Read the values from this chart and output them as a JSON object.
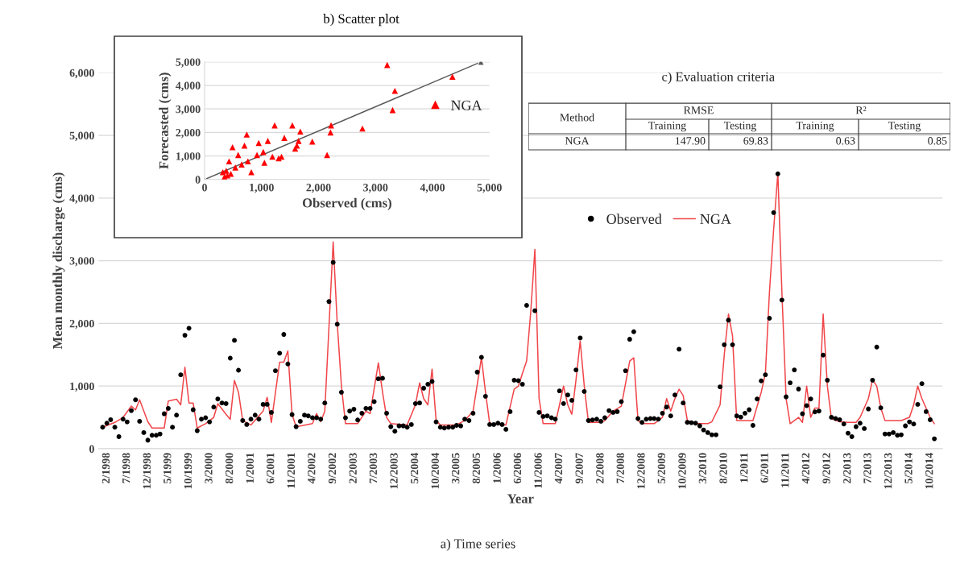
{
  "chart_data": [
    {
      "type": "line",
      "xlabel": "Year",
      "ylabel": "Mean monthly discharge (cms)",
      "annotations": [
        "a) Time series"
      ],
      "xlim": [
        "1997-12",
        "2015-01"
      ],
      "ylim": [
        0,
        6000
      ],
      "yticks": [
        0,
        {
          "value": 1000,
          "label": "1,000"
        },
        {
          "value": 2000,
          "label": "2,000"
        },
        {
          "value": 3000,
          "label": "3,000"
        },
        {
          "value": 4000,
          "label": "4,000"
        },
        {
          "value": 5000,
          "label": "5,000"
        },
        {
          "value": 6000,
          "label": "6,000"
        }
      ],
      "xticks": [
        {
          "value": "1998-02",
          "label": "2/1998"
        },
        {
          "value": "1998-07",
          "label": "7/1998"
        },
        {
          "value": "1998-12",
          "label": "12/1998"
        },
        {
          "value": "1999-05",
          "label": "5/1999"
        },
        {
          "value": "1999-10",
          "label": "10/1999"
        },
        {
          "value": "2000-03",
          "label": "3/2000"
        },
        {
          "value": "2000-08",
          "label": "8/2000"
        },
        {
          "value": "2001-01",
          "label": "1/2001"
        },
        {
          "value": "2001-06",
          "label": "6/2001"
        },
        {
          "value": "2001-11",
          "label": "11/2001"
        },
        {
          "value": "2002-04",
          "label": "4/2002"
        },
        {
          "value": "2002-09",
          "label": "9/2002"
        },
        {
          "value": "2003-02",
          "label": "2/2003"
        },
        {
          "value": "2003-07",
          "label": "7/2003"
        },
        {
          "value": "2003-12",
          "label": "12/2003"
        },
        {
          "value": "2004-05",
          "label": "5/2004"
        },
        {
          "value": "2004-10",
          "label": "10/2004"
        },
        {
          "value": "2005-03",
          "label": "3/2005"
        },
        {
          "value": "2005-08",
          "label": "8/2005"
        },
        {
          "value": "2006-01",
          "label": "1/2006"
        },
        {
          "value": "2006-06",
          "label": "6/2006"
        },
        {
          "value": "2006-11",
          "label": "11/2006"
        },
        {
          "value": "2007-04",
          "label": "4/2007"
        },
        {
          "value": "2007-09",
          "label": "9/2007"
        },
        {
          "value": "2008-02",
          "label": "2/2008"
        },
        {
          "value": "2008-07",
          "label": "7/2008"
        },
        {
          "value": "2008-12",
          "label": "12/2008"
        },
        {
          "value": "2009-05",
          "label": "5/2009"
        },
        {
          "value": "2009-10",
          "label": "10/2009"
        },
        {
          "value": "2010-03",
          "label": "3/2010"
        },
        {
          "value": "2010-08",
          "label": "8/2010"
        },
        {
          "value": "2011-01",
          "label": "1/2011"
        },
        {
          "value": "2011-06",
          "label": "6/2011"
        },
        {
          "value": "2011-11",
          "label": "11/2011"
        },
        {
          "value": "2012-04",
          "label": "4/2012"
        },
        {
          "value": "2012-09",
          "label": "9/2012"
        },
        {
          "value": "2013-02",
          "label": "2/2013"
        },
        {
          "value": "2013-07",
          "label": "7/2013"
        },
        {
          "value": "2013-12",
          "label": "12/2013"
        },
        {
          "value": "2014-05",
          "label": "5/2014"
        },
        {
          "value": "2014-10",
          "label": "10/2014"
        }
      ],
      "grid": "y",
      "legend": "top",
      "series": [
        {
          "name": "Observed",
          "type": "scatter",
          "marker": "circle",
          "color": "#000000",
          "x": [
            "1998-01",
            "1998-02",
            "1998-03",
            "1998-04",
            "1998-05",
            "1998-06",
            "1998-07",
            "1998-08",
            "1998-09",
            "1998-10",
            "1998-11",
            "1998-12",
            "1999-01",
            "1999-02",
            "1999-03",
            "1999-04",
            "1999-05",
            "1999-06",
            "1999-07",
            "1999-08",
            "1999-09",
            "1999-10",
            "1999-11",
            "1999-12",
            "2000-01",
            "2000-02",
            "2000-03",
            "2000-04",
            "2000-05",
            "2000-06",
            "2000-07",
            "2000-08",
            "2000-09",
            "2000-10",
            "2000-11",
            "2000-12",
            "2001-01",
            "2001-02",
            "2001-03",
            "2001-04",
            "2001-05",
            "2001-06",
            "2001-07",
            "2001-08",
            "2001-09",
            "2001-10",
            "2001-11",
            "2001-12",
            "2002-01",
            "2002-02",
            "2002-03",
            "2002-04",
            "2002-05",
            "2002-06",
            "2002-07",
            "2002-08",
            "2002-09",
            "2002-10",
            "2002-11",
            "2002-12",
            "2003-01",
            "2003-02",
            "2003-03",
            "2003-04",
            "2003-05",
            "2003-06",
            "2003-07",
            "2003-08",
            "2003-09",
            "2003-10",
            "2003-11",
            "2003-12",
            "2004-01",
            "2004-02",
            "2004-03",
            "2004-04",
            "2004-05",
            "2004-06",
            "2004-07",
            "2004-08",
            "2004-09",
            "2004-10",
            "2004-11",
            "2004-12",
            "2005-01",
            "2005-02",
            "2005-03",
            "2005-04",
            "2005-05",
            "2005-06",
            "2005-07",
            "2005-08",
            "2005-09",
            "2005-10",
            "2005-11",
            "2005-12",
            "2006-01",
            "2006-02",
            "2006-03",
            "2006-04",
            "2006-05",
            "2006-06",
            "2006-07",
            "2006-08",
            "2006-10",
            "2006-11",
            "2006-12",
            "2007-01",
            "2007-02",
            "2007-03",
            "2007-04",
            "2007-05",
            "2007-06",
            "2007-07",
            "2007-08",
            "2007-09",
            "2007-10",
            "2007-11",
            "2007-12",
            "2008-01",
            "2008-02",
            "2008-03",
            "2008-04",
            "2008-05",
            "2008-06",
            "2008-07",
            "2008-08",
            "2008-09",
            "2008-10",
            "2008-11",
            "2008-12",
            "2009-01",
            "2009-02",
            "2009-03",
            "2009-04",
            "2009-05",
            "2009-06",
            "2009-07",
            "2009-08",
            "2009-09",
            "2009-10",
            "2009-11",
            "2009-12",
            "2010-01",
            "2010-02",
            "2010-03",
            "2010-04",
            "2010-05",
            "2010-06",
            "2010-07",
            "2010-08",
            "2010-09",
            "2010-10",
            "2010-11",
            "2010-12",
            "2011-01",
            "2011-02",
            "2011-03",
            "2011-04",
            "2011-05",
            "2011-06",
            "2011-07",
            "2011-08",
            "2011-09",
            "2011-10",
            "2011-11",
            "2011-12",
            "2012-01",
            "2012-02",
            "2012-03",
            "2012-04",
            "2012-05",
            "2012-06",
            "2012-07",
            "2012-08",
            "2012-09",
            "2012-10",
            "2012-11",
            "2012-12",
            "2013-01",
            "2013-02",
            "2013-03",
            "2013-04",
            "2013-05",
            "2013-06",
            "2013-07",
            "2013-08",
            "2013-09",
            "2013-10",
            "2013-11",
            "2013-12",
            "2014-01",
            "2014-02",
            "2014-03",
            "2014-04",
            "2014-05",
            "2014-06",
            "2014-07",
            "2014-08",
            "2014-09",
            "2014-10",
            "2014-11"
          ],
          "values": [
            343,
            408,
            463,
            343,
            193,
            472,
            429,
            609,
            781,
            438,
            258,
            137,
            215,
            215,
            236,
            558,
            644,
            343,
            536,
            1180,
            1811,
            1923,
            622,
            288,
            472,
            494,
            429,
            665,
            794,
            730,
            721,
            1446,
            1730,
            1253,
            450,
            386,
            472,
            536,
            472,
            708,
            708,
            579,
            1245,
            1524,
            1824,
            1352,
            545,
            352,
            438,
            536,
            524,
            494,
            494,
            472,
            730,
            2348,
            2974,
            1987,
            901,
            494,
            601,
            631,
            459,
            567,
            644,
            644,
            751,
            1116,
            1124,
            567,
            352,
            279,
            365,
            365,
            343,
            386,
            721,
            730,
            966,
            1030,
            1073,
            429,
            343,
            330,
            343,
            343,
            373,
            365,
            472,
            450,
            567,
            1223,
            1459,
            837,
            386,
            386,
            408,
            386,
            309,
            592,
            1094,
            1086,
            1030,
            2288,
            2202,
            579,
            515,
            524,
            494,
            472,
            923,
            721,
            858,
            773,
            1258,
            1768,
            914,
            450,
            459,
            472,
            438,
            494,
            609,
            579,
            592,
            751,
            1245,
            1747,
            1867,
            481,
            421,
            472,
            481,
            481,
            472,
            567,
            665,
            524,
            858,
            1588,
            730,
            421,
            416,
            408,
            365,
            300,
            258,
            223,
            223,
            987,
            1660,
            2052,
            1660,
            524,
            506,
            567,
            622,
            373,
            794,
            1082,
            1180,
            2082,
            3768,
            4386,
            2373,
            828,
            1052,
            1258,
            953,
            558,
            687,
            794,
            588,
            601,
            1494,
            1094,
            502,
            481,
            463,
            395,
            249,
            193,
            352,
            408,
            322,
            635,
            1094,
            1622,
            652,
            236,
            236,
            258,
            215,
            223,
            365,
            429,
            395,
            708,
            1039,
            592,
            463,
            159
          ]
        },
        {
          "name": "NGA",
          "type": "line",
          "color": "#f0464a",
          "x": [
            "1998-01",
            "1998-04",
            "1998-06",
            "1998-08",
            "1998-09",
            "1998-10",
            "1998-12",
            "1999-01",
            "1999-04",
            "1999-05",
            "1999-07",
            "1999-08",
            "1999-09",
            "1999-10",
            "1999-11",
            "1999-12",
            "2000-02",
            "2000-04",
            "2000-05",
            "2000-07",
            "2000-08",
            "2000-09",
            "2000-10",
            "2000-11",
            "2001-01",
            "2001-04",
            "2001-05",
            "2001-06",
            "2001-08",
            "2001-09",
            "2001-10",
            "2001-11",
            "2001-12",
            "2002-04",
            "2002-05",
            "2002-06",
            "2002-07",
            "2002-09",
            "2002-10",
            "2002-11",
            "2002-12",
            "2003-03",
            "2003-05",
            "2003-06",
            "2003-08",
            "2003-09",
            "2003-10",
            "2003-11",
            "2004-03",
            "2004-05",
            "2004-06",
            "2004-07",
            "2004-08",
            "2004-09",
            "2004-10",
            "2004-11",
            "2005-03",
            "2005-05",
            "2005-07",
            "2005-09",
            "2005-10",
            "2005-11",
            "2006-03",
            "2006-05",
            "2006-06",
            "2006-07",
            "2006-08",
            "2006-09",
            "2006-10",
            "2006-11",
            "2006-12",
            "2007-03",
            "2007-04",
            "2007-05",
            "2007-06",
            "2007-07",
            "2007-08",
            "2007-09",
            "2007-10",
            "2007-11",
            "2008-02",
            "2008-03",
            "2008-05",
            "2008-07",
            "2008-09",
            "2008-10",
            "2008-11",
            "2008-12",
            "2009-03",
            "2009-05",
            "2009-06",
            "2009-07",
            "2009-08",
            "2009-09",
            "2009-10",
            "2009-11",
            "2010-01",
            "2010-04",
            "2010-05",
            "2010-07",
            "2010-08",
            "2010-09",
            "2010-10",
            "2010-11",
            "2011-01",
            "2011-03",
            "2011-05",
            "2011-06",
            "2011-07",
            "2011-08",
            "2011-09",
            "2011-10",
            "2011-11",
            "2011-12",
            "2012-02",
            "2012-03",
            "2012-04",
            "2012-05",
            "2012-06",
            "2012-07",
            "2012-08",
            "2012-09",
            "2012-10",
            "2012-12",
            "2013-02",
            "2013-04",
            "2013-05",
            "2013-07",
            "2013-08",
            "2013-09",
            "2013-10",
            "2013-11",
            "2014-03",
            "2014-05",
            "2014-06",
            "2014-07",
            "2014-08",
            "2014-10",
            "2014-11"
          ],
          "values": [
            343,
            420,
            500,
            680,
            620,
            780,
            430,
            330,
            330,
            760,
            790,
            700,
            1300,
            730,
            730,
            330,
            400,
            500,
            720,
            550,
            470,
            1090,
            900,
            450,
            380,
            600,
            820,
            420,
            1380,
            1380,
            1560,
            550,
            350,
            400,
            560,
            430,
            600,
            3300,
            2000,
            1000,
            400,
            400,
            600,
            560,
            1370,
            900,
            500,
            400,
            380,
            700,
            1050,
            800,
            700,
            1270,
            450,
            380,
            380,
            450,
            600,
            1450,
            900,
            400,
            380,
            950,
            1000,
            1200,
            1400,
            2200,
            3180,
            800,
            400,
            400,
            700,
            1000,
            700,
            550,
            1100,
            1720,
            1000,
            420,
            420,
            450,
            600,
            680,
            1400,
            1450,
            450,
            400,
            400,
            500,
            800,
            600,
            800,
            950,
            850,
            450,
            400,
            400,
            430,
            700,
            1500,
            2150,
            1800,
            450,
            450,
            450,
            900,
            1200,
            2500,
            3500,
            4400,
            2500,
            800,
            400,
            500,
            420,
            1000,
            500,
            650,
            650,
            2150,
            1000,
            480,
            430,
            420,
            420,
            500,
            800,
            1100,
            1000,
            650,
            450,
            450,
            500,
            700,
            1000,
            800,
            500,
            400
          ]
        }
      ]
    },
    {
      "type": "scatter",
      "title": "b) Scatter plot",
      "xlabel": "Observed (cms)",
      "ylabel": "Forecasted (cms)",
      "xlim": [
        0,
        5000
      ],
      "ylim": [
        0,
        5000
      ],
      "xticks": [
        0,
        {
          "value": 1000,
          "label": "1,000"
        },
        {
          "value": 2000,
          "label": "2,000"
        },
        {
          "value": 3000,
          "label": "3,000"
        },
        {
          "value": 4000,
          "label": "4,000"
        },
        {
          "value": 5000,
          "label": "5,000"
        }
      ],
      "yticks": [
        0,
        {
          "value": 1000,
          "label": "1,000"
        },
        {
          "value": 2000,
          "label": "2,000"
        },
        {
          "value": 3000,
          "label": "3,000"
        },
        {
          "value": 4000,
          "label": "4,000"
        },
        {
          "value": 5000,
          "label": "5,000"
        }
      ],
      "grid": "y",
      "legend": "right",
      "marker": "triangle",
      "series": [
        {
          "name": "NGA",
          "color": "#ff0000",
          "x": [
            3205,
            4350,
            3340,
            3300,
            2770,
            2220,
            2210,
            2150,
            1890,
            1680,
            1540,
            1650,
            1590,
            1230,
            1110,
            950,
            740,
            1400,
            1350,
            1190,
            1050,
            700,
            490,
            430,
            380,
            350,
            760,
            920,
            590,
            540,
            820,
            460,
            400,
            320,
            650,
            1030,
            1300,
            1620
          ],
          "values": [
            4870,
            4370,
            3770,
            2950,
            2170,
            2300,
            2000,
            1040,
            1610,
            2040,
            2300,
            1640,
            1310,
            2300,
            1640,
            1550,
            1910,
            1770,
            970,
            970,
            710,
            1440,
            1370,
            770,
            370,
            110,
            770,
            1040,
            1040,
            510,
            310,
            240,
            170,
            310,
            640,
            1170,
            900,
            1440
          ]
        },
        {
          "type": "line",
          "color": "#595959",
          "x": [
            0,
            4850
          ],
          "values": [
            0,
            5000
          ]
        }
      ]
    },
    {
      "type": "other",
      "title": "c) Evaluation criteria",
      "annotations": [
        "Method",
        "RMSE",
        "R²",
        "Training",
        "Testing",
        "Training",
        "Testing",
        "NGA",
        "147.90",
        "69.83",
        "0.63",
        "0.85"
      ]
    }
  ]
}
